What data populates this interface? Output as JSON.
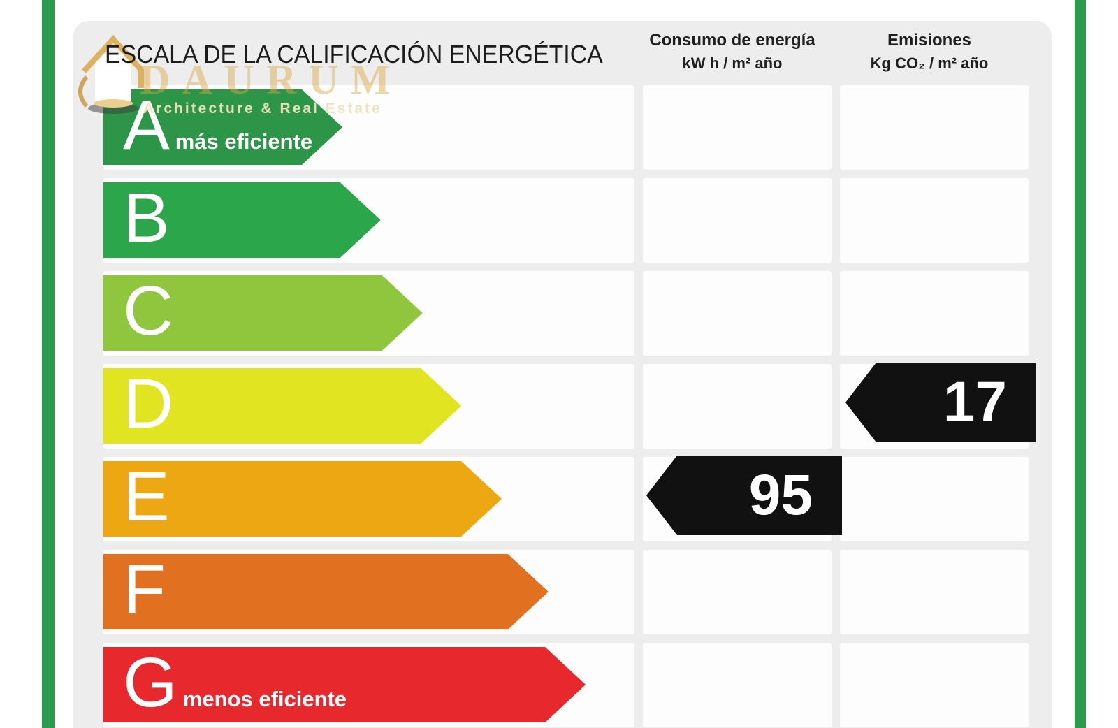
{
  "header": {
    "title": "ESCALA DE LA CALIFICACIÓN ENERGÉTICA",
    "col_consumption_line1": "Consumo de energía",
    "col_consumption_line2": "kW h / m² año",
    "col_emissions_line1": "Emisiones",
    "col_emissions_line2": "Kg CO₂ / m² año"
  },
  "watermark": {
    "brand": "DAURUM",
    "tagline": "Architecture & Real Estate"
  },
  "colors": {
    "border_green": "#2b9b4d",
    "panel_bg": "#ededed",
    "indicator_black": "#111111",
    "watermark_gold": "#d9a843"
  },
  "chart_data": {
    "type": "bar",
    "title": "ESCALA DE LA CALIFICACIÓN ENERGÉTICA",
    "categories": [
      "A",
      "B",
      "C",
      "D",
      "E",
      "F",
      "G"
    ],
    "ratings": [
      {
        "letter": "A",
        "label": "más eficiente",
        "color": "#2d9548",
        "bar_width_pct": 45.0
      },
      {
        "letter": "B",
        "label": "",
        "color": "#2ca64a",
        "bar_width_pct": 52.2
      },
      {
        "letter": "C",
        "label": "",
        "color": "#8fc63d",
        "bar_width_pct": 60.1
      },
      {
        "letter": "D",
        "label": "",
        "color": "#e1e521",
        "bar_width_pct": 67.4
      },
      {
        "letter": "E",
        "label": "",
        "color": "#eca712",
        "bar_width_pct": 75.0
      },
      {
        "letter": "F",
        "label": "",
        "color": "#e17020",
        "bar_width_pct": 83.8
      },
      {
        "letter": "G",
        "label": "menos eficiente",
        "color": "#e7292e",
        "bar_width_pct": 90.8
      }
    ],
    "consumption": {
      "value": "95",
      "unit": "kW h / m² año",
      "rating_row": "E"
    },
    "emissions": {
      "value": "17",
      "unit": "Kg CO₂ / m² año",
      "rating_row": "D"
    }
  }
}
